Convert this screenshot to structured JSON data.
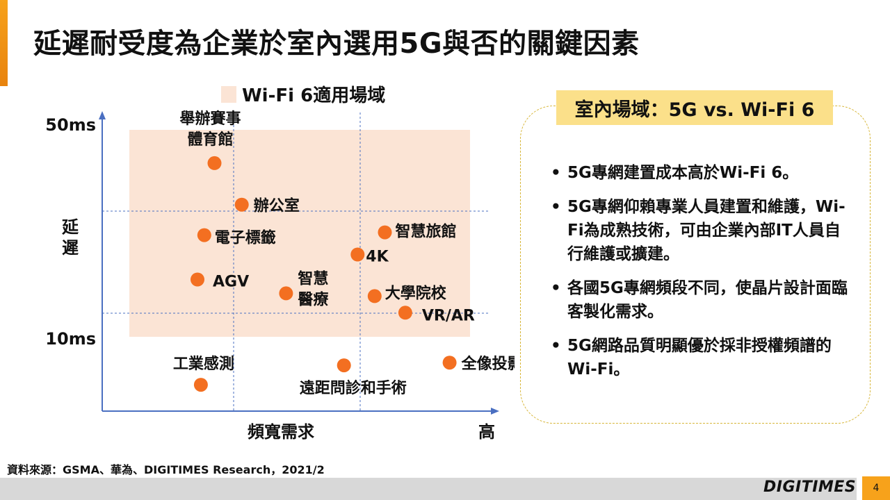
{
  "title": "延遲耐受度為企業於室內選用5G與否的關鍵因素",
  "colors": {
    "accent": "#f7a21b",
    "point": "#f36f21",
    "region": "#fbe4d5",
    "grid": "#4a6fc1",
    "axis": "#4a6fc1",
    "panel_border": "#d7b536",
    "panel_header": "#fbe08a"
  },
  "chart_data": {
    "type": "scatter",
    "title": "",
    "xlabel": "頻寬需求",
    "x_high_label": "高",
    "ylabel": "延遲",
    "y_ticks": [
      "50ms",
      "10ms"
    ],
    "legend": {
      "label": "Wi-Fi 6適用場域",
      "placement": "top"
    },
    "points": [
      {
        "label": "舉辦賽事體育館",
        "label_lines": [
          "舉辦賽事",
          "體育館"
        ],
        "x": 0.25,
        "y": 0.88
      },
      {
        "label": "辦公室",
        "x": 0.33,
        "y": 0.73
      },
      {
        "label": "電子標籤",
        "x": 0.22,
        "y": 0.62
      },
      {
        "label": "智慧旅館",
        "x": 0.75,
        "y": 0.63
      },
      {
        "label": "4K",
        "x": 0.67,
        "y": 0.55
      },
      {
        "label": "AGV",
        "x": 0.2,
        "y": 0.46
      },
      {
        "label": "智慧醫療",
        "label_lines": [
          "智慧",
          "醫療"
        ],
        "x": 0.46,
        "y": 0.41
      },
      {
        "label": "大學院校",
        "x": 0.72,
        "y": 0.4
      },
      {
        "label": "VR/AR",
        "x": 0.81,
        "y": 0.34
      },
      {
        "label": "工業感測",
        "x": 0.21,
        "y": 0.08
      },
      {
        "label": "遠距問診和手術",
        "x": 0.63,
        "y": 0.15
      },
      {
        "label": "全像投影",
        "x": 0.94,
        "y": 0.16
      }
    ]
  },
  "panel": {
    "header": "室內場域：5G vs. Wi-Fi 6",
    "bullet_char": "•",
    "bullets": [
      "5G專網建置成本高於Wi-Fi 6。",
      "5G專網仰賴專業人員建置和維護，Wi-Fi為成熟技術，可由企業內部IT人員自行維護或擴建。",
      "各國5G專網頻段不同，使晶片設計面臨客製化需求。",
      "5G網路品質明顯優於採非授權頻譜的Wi-Fi。"
    ]
  },
  "source": "資料來源：GSMA、華為、DIGITIMES Research，2021/2",
  "brand": "DIGITIMES",
  "page_number": "4"
}
